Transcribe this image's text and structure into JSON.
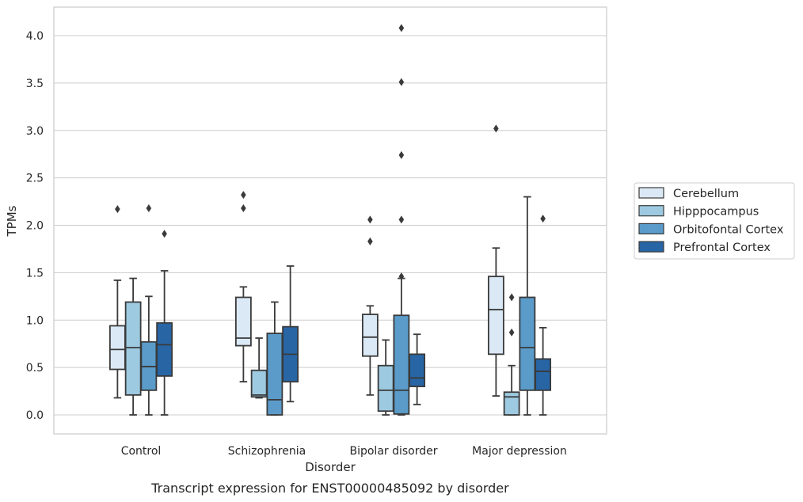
{
  "chart_data": {
    "type": "box",
    "caption": "Transcript expression for ENST00000485092 by disorder",
    "xlabel": "Disorder",
    "ylabel": "TPMs",
    "ylim": [
      -0.2,
      4.3
    ],
    "yticks": [
      "0.0",
      "0.5",
      "1.0",
      "1.5",
      "2.0",
      "2.5",
      "3.0",
      "3.5",
      "4.0"
    ],
    "grid": true,
    "legend_position": "center-right",
    "categories": [
      "Control",
      "Schizophrenia",
      "Bipolar disorder",
      "Major depression"
    ],
    "series": [
      {
        "name": "Cerebellum",
        "color": "#dbe9f6",
        "boxes": [
          {
            "whislo": 0.18,
            "q1": 0.48,
            "med": 0.69,
            "q3": 0.94,
            "whishi": 1.42,
            "fliers": [
              2.17
            ]
          },
          {
            "whislo": 0.35,
            "q1": 0.73,
            "med": 0.81,
            "q3": 1.24,
            "whishi": 1.35,
            "fliers": [
              2.18,
              2.32
            ]
          },
          {
            "whislo": 0.21,
            "q1": 0.62,
            "med": 0.82,
            "q3": 1.06,
            "whishi": 1.15,
            "fliers": [
              1.83,
              2.06
            ]
          },
          {
            "whislo": 0.2,
            "q1": 0.64,
            "med": 1.11,
            "q3": 1.46,
            "whishi": 1.76,
            "fliers": [
              3.02
            ]
          }
        ]
      },
      {
        "name": "Hipppocampus",
        "color": "#9ecae1",
        "boxes": [
          {
            "whislo": 0.0,
            "q1": 0.21,
            "med": 0.71,
            "q3": 1.19,
            "whishi": 1.44,
            "fliers": []
          },
          {
            "whislo": 0.18,
            "q1": 0.19,
            "med": 0.21,
            "q3": 0.47,
            "whishi": 0.81,
            "fliers": []
          },
          {
            "whislo": 0.0,
            "q1": 0.04,
            "med": 0.26,
            "q3": 0.52,
            "whishi": 0.79,
            "fliers": []
          },
          {
            "whislo": 0.0,
            "q1": 0.0,
            "med": 0.19,
            "q3": 0.24,
            "whishi": 0.52,
            "fliers": [
              0.87,
              1.24
            ]
          }
        ]
      },
      {
        "name": "Orbitofontal Cortex",
        "color": "#5a9bc9",
        "boxes": [
          {
            "whislo": 0.0,
            "q1": 0.26,
            "med": 0.51,
            "q3": 0.77,
            "whishi": 1.25,
            "fliers": [
              2.18
            ]
          },
          {
            "whislo": 0.0,
            "q1": 0.0,
            "med": 0.16,
            "q3": 0.86,
            "whishi": 1.19,
            "fliers": []
          },
          {
            "whislo": 0.0,
            "q1": 0.01,
            "med": 0.26,
            "q3": 1.05,
            "whishi": 1.44,
            "fliers": [
              1.46,
              2.06,
              2.74,
              3.51,
              4.08
            ]
          },
          {
            "whislo": 0.0,
            "q1": 0.26,
            "med": 0.71,
            "q3": 1.24,
            "whishi": 2.3,
            "fliers": []
          }
        ]
      },
      {
        "name": "Prefrontal Cortex",
        "color": "#2765a5",
        "boxes": [
          {
            "whislo": 0.0,
            "q1": 0.41,
            "med": 0.74,
            "q3": 0.97,
            "whishi": 1.52,
            "fliers": [
              1.91
            ]
          },
          {
            "whislo": 0.14,
            "q1": 0.35,
            "med": 0.64,
            "q3": 0.93,
            "whishi": 1.57,
            "fliers": []
          },
          {
            "whislo": 0.11,
            "q1": 0.3,
            "med": 0.39,
            "q3": 0.64,
            "whishi": 0.85,
            "fliers": []
          },
          {
            "whislo": 0.0,
            "q1": 0.26,
            "med": 0.46,
            "q3": 0.59,
            "whishi": 0.92,
            "fliers": [
              2.07
            ]
          }
        ]
      }
    ]
  }
}
